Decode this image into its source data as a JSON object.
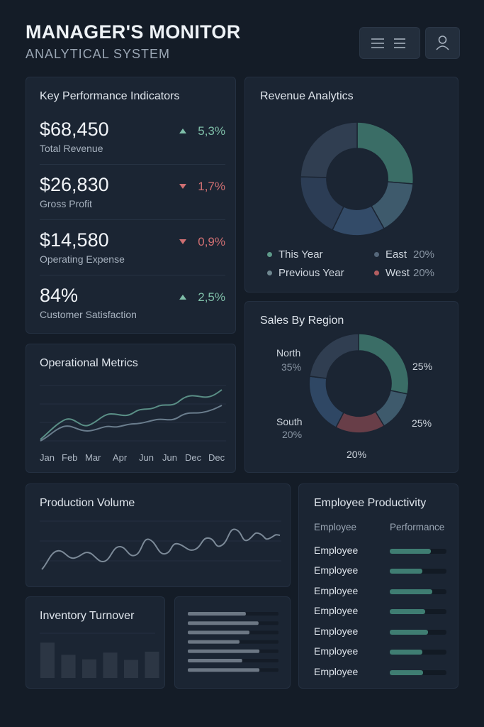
{
  "header": {
    "title": "MANAGER'S MONITOR",
    "subtitle": "ANALYTICAL SYSTEM",
    "menu_icon": "menu-icon",
    "user_icon": "user-icon"
  },
  "colors": {
    "background": "#141c27",
    "card": "#1b2533",
    "accent_teal": "#3f7d72",
    "accent_blue": "#3a526d",
    "up": "#7fbfa9",
    "down": "#cf6f72"
  },
  "kpi": {
    "title": "Key Performance Indicators",
    "items": [
      {
        "value": "$68,450",
        "label": "Total Revenue",
        "change": "5,3%",
        "direction": "up"
      },
      {
        "value": "$26,830",
        "label": "Gross Profit",
        "change": "1,7%",
        "direction": "down"
      },
      {
        "value": "$14,580",
        "label": "Operating Expense",
        "change": "0,9%",
        "direction": "down"
      },
      {
        "value": "84%",
        "label": "Customer Satisfaction",
        "change": "2,5%",
        "direction": "up"
      }
    ]
  },
  "revenue": {
    "title": "Revenue Analytics",
    "legend": [
      {
        "label": "This Year",
        "value": ""
      },
      {
        "label": "Previous Year",
        "value": ""
      },
      {
        "label": "East",
        "value": "20%"
      },
      {
        "label": "West",
        "value": "20%"
      }
    ]
  },
  "operational": {
    "title": "Operational Metrics",
    "months": [
      "Jan",
      "Feb",
      "Mar",
      "Apr",
      "Jun",
      "Jun",
      "Dec",
      "Dec"
    ]
  },
  "sales_region": {
    "title": "Sales By Region",
    "labels": {
      "north": "North",
      "north_pct": "35%",
      "south": "South",
      "south_pct": "20%",
      "right_top": "25%",
      "right_bottom": "25%",
      "bottom": "20%"
    }
  },
  "production": {
    "title": "Production Volume"
  },
  "productivity": {
    "title": "Employee Productivity",
    "col_employee": "Employee",
    "col_performance": "Performance",
    "rows": [
      {
        "name": "Employee",
        "performance": 0.72
      },
      {
        "name": "Employee",
        "performance": 0.57
      },
      {
        "name": "Employee",
        "performance": 0.75
      },
      {
        "name": "Employee",
        "performance": 0.62
      },
      {
        "name": "Employee",
        "performance": 0.68
      },
      {
        "name": "Employee",
        "performance": 0.58
      },
      {
        "name": "Employee",
        "performance": 0.59
      }
    ]
  },
  "inventory": {
    "title": "Inventory Turnover",
    "bars": [
      0.78,
      0.51,
      0.41,
      0.56,
      0.4,
      0.58
    ]
  },
  "list_panel": {
    "bars": [
      0.64,
      0.78,
      0.68,
      0.57,
      0.79,
      0.6,
      0.79
    ]
  }
}
